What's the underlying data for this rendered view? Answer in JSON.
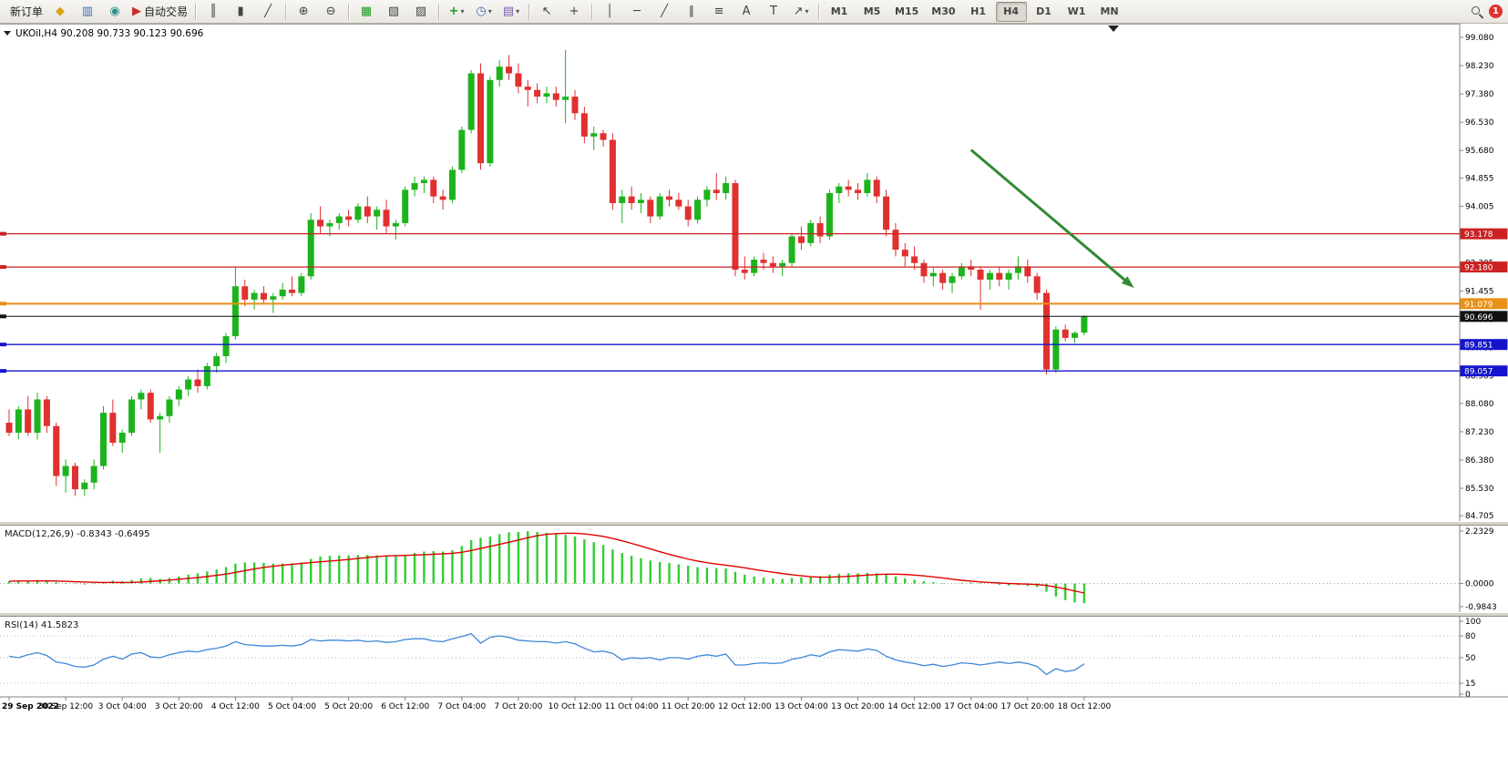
{
  "toolbar": {
    "new_order": {
      "label": "新订单"
    },
    "auto_trading": {
      "label": "自动交易"
    },
    "timeframes": [
      {
        "label": "M1"
      },
      {
        "label": "M5"
      },
      {
        "label": "M15"
      },
      {
        "label": "M30"
      },
      {
        "label": "H1"
      },
      {
        "label": "H4",
        "active": true
      },
      {
        "label": "D1"
      },
      {
        "label": "W1"
      },
      {
        "label": "MN"
      }
    ],
    "notification": {
      "count": "1"
    }
  },
  "chart": {
    "symbol_ohlc": "UKOil,H4 90.208 90.733 90.123 90.696",
    "price_axis_labels": [
      "99.080",
      "98.230",
      "97.380",
      "96.530",
      "95.680",
      "94.855",
      "94.005",
      "93.155",
      "92.305",
      "91.455",
      "90.605",
      "89.755",
      "88.905",
      "88.080",
      "87.230",
      "86.380",
      "85.530",
      "84.705"
    ],
    "hlines": [
      {
        "price": 93.178,
        "label": "93.178",
        "color": "#cc2222",
        "width": 1.3
      },
      {
        "price": 92.18,
        "label": "92.180",
        "color": "#cc2222",
        "width": 1.3
      },
      {
        "price": 91.079,
        "label": "91.079",
        "color": "#e89018",
        "width": 2
      },
      {
        "price": 90.696,
        "label": "90.696",
        "color": "#111111",
        "width": 1,
        "current": true
      },
      {
        "price": 89.851,
        "label": "89.851",
        "color": "#1414cc",
        "width": 1.3
      },
      {
        "price": 89.057,
        "label": "89.057",
        "color": "#1414cc",
        "width": 1.3
      }
    ],
    "arrow": {
      "from_index": 102,
      "from_price": 95.7,
      "to_index": 119.3,
      "to_price": 91.55,
      "color": "#338a33"
    }
  },
  "chart_data": {
    "type": "candlestick",
    "symbol": "UKOil",
    "timeframe": "H4",
    "current_ohlc": {
      "open": 90.208,
      "high": 90.733,
      "low": 90.123,
      "close": 90.696
    },
    "y_range": [
      84.6,
      99.3
    ],
    "up_color": "#1db31d",
    "down_color": "#e03030",
    "label_every": 6,
    "time_labels": [
      "29 Sep 2022",
      "30 Sep 12:00",
      "3 Oct 04:00",
      "3 Oct 20:00",
      "4 Oct 12:00",
      "5 Oct 04:00",
      "5 Oct 20:00",
      "6 Oct 12:00",
      "7 Oct 04:00",
      "7 Oct 20:00",
      "10 Oct 12:00",
      "11 Oct 04:00",
      "11 Oct 20:00",
      "12 Oct 12:00",
      "13 Oct 04:00",
      "13 Oct 20:00",
      "14 Oct 12:00",
      "17 Oct 04:00",
      "17 Oct 20:00",
      "18 Oct 12:00"
    ],
    "candles": [
      [
        87.5,
        87.9,
        87.1,
        87.2
      ],
      [
        87.2,
        88.0,
        87.0,
        87.9
      ],
      [
        87.9,
        88.3,
        87.1,
        87.2
      ],
      [
        87.2,
        88.4,
        87.0,
        88.2
      ],
      [
        88.2,
        88.3,
        87.2,
        87.4
      ],
      [
        87.4,
        87.5,
        85.6,
        85.9
      ],
      [
        85.9,
        86.4,
        85.4,
        86.2
      ],
      [
        86.2,
        86.3,
        85.3,
        85.5
      ],
      [
        85.5,
        85.8,
        85.3,
        85.7
      ],
      [
        85.7,
        86.4,
        85.5,
        86.2
      ],
      [
        86.2,
        88.0,
        86.1,
        87.8
      ],
      [
        87.8,
        88.2,
        86.8,
        86.9
      ],
      [
        86.9,
        87.3,
        86.6,
        87.2
      ],
      [
        87.2,
        88.3,
        87.1,
        88.2
      ],
      [
        88.2,
        88.5,
        87.9,
        88.4
      ],
      [
        88.4,
        88.5,
        87.5,
        87.6
      ],
      [
        87.6,
        87.8,
        86.6,
        87.7
      ],
      [
        87.7,
        88.3,
        87.5,
        88.2
      ],
      [
        88.2,
        88.6,
        88.0,
        88.5
      ],
      [
        88.5,
        88.9,
        88.3,
        88.8
      ],
      [
        88.8,
        89.1,
        88.4,
        88.6
      ],
      [
        88.6,
        89.3,
        88.5,
        89.2
      ],
      [
        89.2,
        89.6,
        89.0,
        89.5
      ],
      [
        89.5,
        90.2,
        89.3,
        90.1
      ],
      [
        90.1,
        92.2,
        90.0,
        91.6
      ],
      [
        91.6,
        91.8,
        91.0,
        91.2
      ],
      [
        91.2,
        91.5,
        90.9,
        91.4
      ],
      [
        91.4,
        91.6,
        91.1,
        91.2
      ],
      [
        91.2,
        91.4,
        90.8,
        91.3
      ],
      [
        91.3,
        91.7,
        91.2,
        91.5
      ],
      [
        91.5,
        91.9,
        91.3,
        91.4
      ],
      [
        91.4,
        92.0,
        91.3,
        91.9
      ],
      [
        91.9,
        93.8,
        91.8,
        93.6
      ],
      [
        93.6,
        94.0,
        93.2,
        93.4
      ],
      [
        93.4,
        93.6,
        93.1,
        93.5
      ],
      [
        93.5,
        93.8,
        93.3,
        93.7
      ],
      [
        93.7,
        93.9,
        93.4,
        93.6
      ],
      [
        93.6,
        94.1,
        93.5,
        94.0
      ],
      [
        94.0,
        94.3,
        93.5,
        93.7
      ],
      [
        93.7,
        94.0,
        93.3,
        93.9
      ],
      [
        93.9,
        94.2,
        93.2,
        93.4
      ],
      [
        93.4,
        93.6,
        93.0,
        93.5
      ],
      [
        93.5,
        94.6,
        93.4,
        94.5
      ],
      [
        94.5,
        94.9,
        94.3,
        94.7
      ],
      [
        94.7,
        94.9,
        94.4,
        94.8
      ],
      [
        94.8,
        94.9,
        94.1,
        94.3
      ],
      [
        94.3,
        94.5,
        93.9,
        94.2
      ],
      [
        94.2,
        95.2,
        94.1,
        95.1
      ],
      [
        95.1,
        96.4,
        95.0,
        96.3
      ],
      [
        96.3,
        98.1,
        96.2,
        98.0
      ],
      [
        98.0,
        98.3,
        95.1,
        95.3
      ],
      [
        95.3,
        97.9,
        95.2,
        97.8
      ],
      [
        97.8,
        98.4,
        97.6,
        98.2
      ],
      [
        98.2,
        98.55,
        97.8,
        98.0
      ],
      [
        98.0,
        98.3,
        97.4,
        97.6
      ],
      [
        97.6,
        97.8,
        97.0,
        97.5
      ],
      [
        97.5,
        97.7,
        97.1,
        97.3
      ],
      [
        97.3,
        97.6,
        97.1,
        97.4
      ],
      [
        97.4,
        97.6,
        97.0,
        97.2
      ],
      [
        97.2,
        98.7,
        96.5,
        97.3
      ],
      [
        97.3,
        97.5,
        96.6,
        96.8
      ],
      [
        96.8,
        97.0,
        95.9,
        96.1
      ],
      [
        96.1,
        96.4,
        95.7,
        96.2
      ],
      [
        96.2,
        96.3,
        95.8,
        96.0
      ],
      [
        96.0,
        96.2,
        93.9,
        94.1
      ],
      [
        94.1,
        94.5,
        93.5,
        94.3
      ],
      [
        94.3,
        94.6,
        93.9,
        94.1
      ],
      [
        94.1,
        94.4,
        93.8,
        94.2
      ],
      [
        94.2,
        94.3,
        93.5,
        93.7
      ],
      [
        93.7,
        94.4,
        93.6,
        94.3
      ],
      [
        94.3,
        94.5,
        94.0,
        94.2
      ],
      [
        94.2,
        94.4,
        93.9,
        94.0
      ],
      [
        94.0,
        94.2,
        93.4,
        93.6
      ],
      [
        93.6,
        94.3,
        93.5,
        94.2
      ],
      [
        94.2,
        94.6,
        94.0,
        94.5
      ],
      [
        94.5,
        95.0,
        94.2,
        94.4
      ],
      [
        94.4,
        94.9,
        94.2,
        94.7
      ],
      [
        94.7,
        94.8,
        91.9,
        92.1
      ],
      [
        92.1,
        92.5,
        91.8,
        92.0
      ],
      [
        92.0,
        92.5,
        91.9,
        92.4
      ],
      [
        92.4,
        92.6,
        92.1,
        92.3
      ],
      [
        92.3,
        92.5,
        92.0,
        92.2
      ],
      [
        92.2,
        92.4,
        91.9,
        92.3
      ],
      [
        92.3,
        93.2,
        92.2,
        93.1
      ],
      [
        93.1,
        93.4,
        92.7,
        92.9
      ],
      [
        92.9,
        93.6,
        92.8,
        93.5
      ],
      [
        93.5,
        93.7,
        92.9,
        93.1
      ],
      [
        93.1,
        94.5,
        93.0,
        94.4
      ],
      [
        94.4,
        94.7,
        94.1,
        94.6
      ],
      [
        94.6,
        94.8,
        94.3,
        94.5
      ],
      [
        94.5,
        94.7,
        94.2,
        94.4
      ],
      [
        94.4,
        95.0,
        94.3,
        94.8
      ],
      [
        94.8,
        94.9,
        94.1,
        94.3
      ],
      [
        94.3,
        94.5,
        93.1,
        93.3
      ],
      [
        93.3,
        93.5,
        92.5,
        92.7
      ],
      [
        92.7,
        92.9,
        92.2,
        92.5
      ],
      [
        92.5,
        92.8,
        92.1,
        92.3
      ],
      [
        92.3,
        92.4,
        91.7,
        91.9
      ],
      [
        91.9,
        92.2,
        91.6,
        92.0
      ],
      [
        92.0,
        92.1,
        91.5,
        91.7
      ],
      [
        91.7,
        92.0,
        91.4,
        91.9
      ],
      [
        91.9,
        92.3,
        91.8,
        92.2
      ],
      [
        92.2,
        92.4,
        91.9,
        92.1
      ],
      [
        92.1,
        92.2,
        90.9,
        91.8
      ],
      [
        91.8,
        92.1,
        91.5,
        92.0
      ],
      [
        92.0,
        92.2,
        91.6,
        91.8
      ],
      [
        91.8,
        92.1,
        91.5,
        92.0
      ],
      [
        92.0,
        92.5,
        91.8,
        92.2
      ],
      [
        92.2,
        92.4,
        91.7,
        91.9
      ],
      [
        91.9,
        92.0,
        91.2,
        91.4
      ],
      [
        91.4,
        91.5,
        88.95,
        89.1
      ],
      [
        89.1,
        90.4,
        89.0,
        90.3
      ],
      [
        90.3,
        90.45,
        89.95,
        90.05
      ],
      [
        90.05,
        90.25,
        89.9,
        90.2
      ],
      [
        90.208,
        90.733,
        90.123,
        90.696
      ]
    ],
    "indicators": [
      {
        "type": "macd",
        "label": "MACD(12,26,9) -0.8343 -0.6495",
        "params": [
          12,
          26,
          9
        ],
        "main": -0.8343,
        "signal": -0.6495,
        "axis_labels": [
          "2.2329",
          "0.0000",
          "-0.9843"
        ],
        "axis_values": [
          2.2329,
          0.0,
          -0.9843
        ],
        "range": [
          -0.9843,
          2.2329
        ],
        "hist_color": "#32cd32",
        "signal_color": "#e00000",
        "histogram": [
          0.1,
          0.12,
          0.1,
          0.14,
          0.12,
          0.06,
          0.02,
          -0.02,
          -0.04,
          -0.02,
          0.06,
          0.12,
          0.1,
          0.16,
          0.22,
          0.24,
          0.2,
          0.24,
          0.3,
          0.38,
          0.44,
          0.52,
          0.6,
          0.7,
          0.85,
          0.9,
          0.9,
          0.88,
          0.85,
          0.85,
          0.86,
          0.9,
          1.05,
          1.15,
          1.18,
          1.2,
          1.2,
          1.22,
          1.22,
          1.2,
          1.18,
          1.16,
          1.22,
          1.3,
          1.36,
          1.38,
          1.36,
          1.42,
          1.6,
          1.85,
          1.95,
          2.0,
          2.1,
          2.18,
          2.2,
          2.23,
          2.2,
          2.16,
          2.1,
          2.08,
          2.0,
          1.88,
          1.76,
          1.64,
          1.45,
          1.3,
          1.18,
          1.08,
          0.98,
          0.92,
          0.88,
          0.82,
          0.76,
          0.7,
          0.68,
          0.66,
          0.64,
          0.5,
          0.38,
          0.3,
          0.25,
          0.22,
          0.2,
          0.24,
          0.26,
          0.3,
          0.32,
          0.38,
          0.42,
          0.44,
          0.44,
          0.46,
          0.44,
          0.38,
          0.3,
          0.22,
          0.16,
          0.1,
          0.06,
          0.02,
          0.0,
          0.02,
          0.04,
          0.02,
          0.0,
          -0.05,
          -0.08,
          -0.06,
          -0.1,
          -0.15,
          -0.35,
          -0.55,
          -0.7,
          -0.8,
          -0.8343
        ]
      },
      {
        "type": "rsi",
        "label": "RSI(14) 41.5823",
        "period": 14,
        "value": 41.5823,
        "levels": [
          80,
          50,
          15
        ],
        "axis_labels": [
          "100",
          "80",
          "50",
          "15",
          "0"
        ],
        "axis_values": [
          100,
          80,
          50,
          15,
          0
        ],
        "range": [
          0,
          100
        ],
        "line_color": "#3e86d8",
        "values": [
          52,
          50,
          54,
          57,
          53,
          44,
          42,
          38,
          37,
          40,
          48,
          52,
          48,
          55,
          57,
          51,
          50,
          54,
          57,
          59,
          58,
          61,
          63,
          66,
          72,
          68,
          67,
          66,
          66,
          67,
          66,
          68,
          75,
          73,
          74,
          74,
          73,
          74,
          72,
          73,
          71,
          72,
          75,
          76,
          76,
          73,
          72,
          76,
          79,
          83,
          70,
          78,
          80,
          78,
          74,
          73,
          72,
          72,
          70,
          72,
          69,
          63,
          58,
          59,
          56,
          47,
          50,
          49,
          50,
          47,
          50,
          50,
          48,
          52,
          54,
          52,
          55,
          40,
          40,
          42,
          43,
          42,
          43,
          48,
          50,
          54,
          52,
          58,
          61,
          60,
          59,
          62,
          60,
          52,
          47,
          44,
          42,
          39,
          41,
          38,
          40,
          43,
          42,
          40,
          42,
          44,
          42,
          44,
          42,
          38,
          27,
          35,
          31,
          33,
          41.58
        ]
      }
    ]
  }
}
